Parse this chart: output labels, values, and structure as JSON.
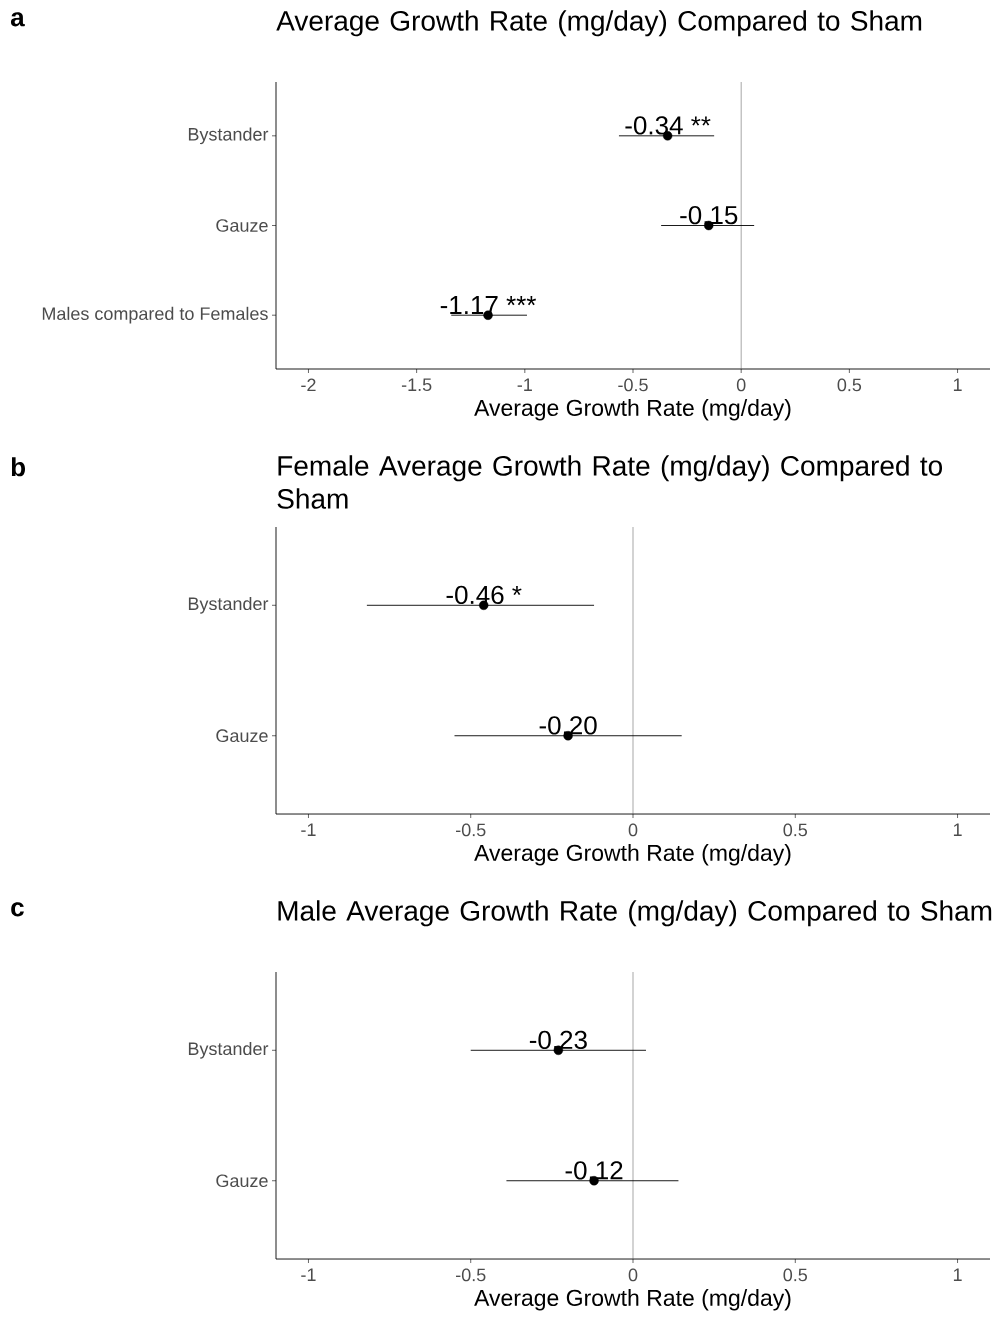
{
  "chart_data": [
    {
      "type": "scatter",
      "title": "Average Growth Rate (mg/day) Compared to Sham",
      "xlabel": "Average Growth Rate (mg/day)",
      "annotations": [
        "a"
      ],
      "orientation": "horizontal",
      "marker": "circle",
      "color": "#000000",
      "categories": [
        "Bystander",
        "Gauze",
        "Males compared to Females"
      ],
      "values": [
        -0.34,
        -0.15,
        -1.17
      ],
      "errors": [
        [
          -0.565,
          -0.125
        ],
        [
          -0.37,
          0.06
        ],
        [
          -1.34,
          -0.99
        ]
      ],
      "value_labels": [
        "-0.34 **",
        "-0.15",
        "-1.17 ***"
      ],
      "xlim": [
        -2.15,
        1.15
      ],
      "xticks": [
        -2,
        -1.5,
        -1,
        -0.5,
        0,
        0.5,
        1
      ],
      "ref_lines": [
        {
          "axis": "x",
          "value": 0,
          "color": "#4d4d4d"
        }
      ]
    },
    {
      "type": "scatter",
      "title": "Female Average Growth Rate (mg/day) Compared to Sham",
      "xlabel": "Average Growth Rate (mg/day)",
      "annotations": [
        "b"
      ],
      "orientation": "horizontal",
      "marker": "circle",
      "color": "#000000",
      "categories": [
        "Bystander",
        "Gauze"
      ],
      "values": [
        -0.46,
        -0.2
      ],
      "errors": [
        [
          -0.82,
          -0.12
        ],
        [
          -0.55,
          0.15
        ]
      ],
      "value_labels": [
        "-0.46 *",
        "-0.20"
      ],
      "xlim": [
        -1.1,
        1.1
      ],
      "xticks": [
        -1,
        -0.5,
        0,
        0.5,
        1
      ],
      "ref_lines": [
        {
          "axis": "x",
          "value": 0,
          "color": "#4d4d4d"
        }
      ]
    },
    {
      "type": "scatter",
      "title": "Male Average Growth Rate (mg/day) Compared to Sham",
      "xlabel": "Average Growth Rate (mg/day)",
      "annotations": [
        "c"
      ],
      "orientation": "horizontal",
      "marker": "circle",
      "color": "#000000",
      "categories": [
        "Bystander",
        "Gauze"
      ],
      "values": [
        -0.23,
        -0.12
      ],
      "errors": [
        [
          -0.5,
          0.04
        ],
        [
          -0.39,
          0.14
        ]
      ],
      "value_labels": [
        "-0.23",
        "-0.12"
      ],
      "xlim": [
        -1.1,
        1.1
      ],
      "xticks": [
        -1,
        -0.5,
        0,
        0.5,
        1
      ],
      "ref_lines": [
        {
          "axis": "x",
          "value": 0,
          "color": "#4d4d4d"
        }
      ]
    }
  ]
}
